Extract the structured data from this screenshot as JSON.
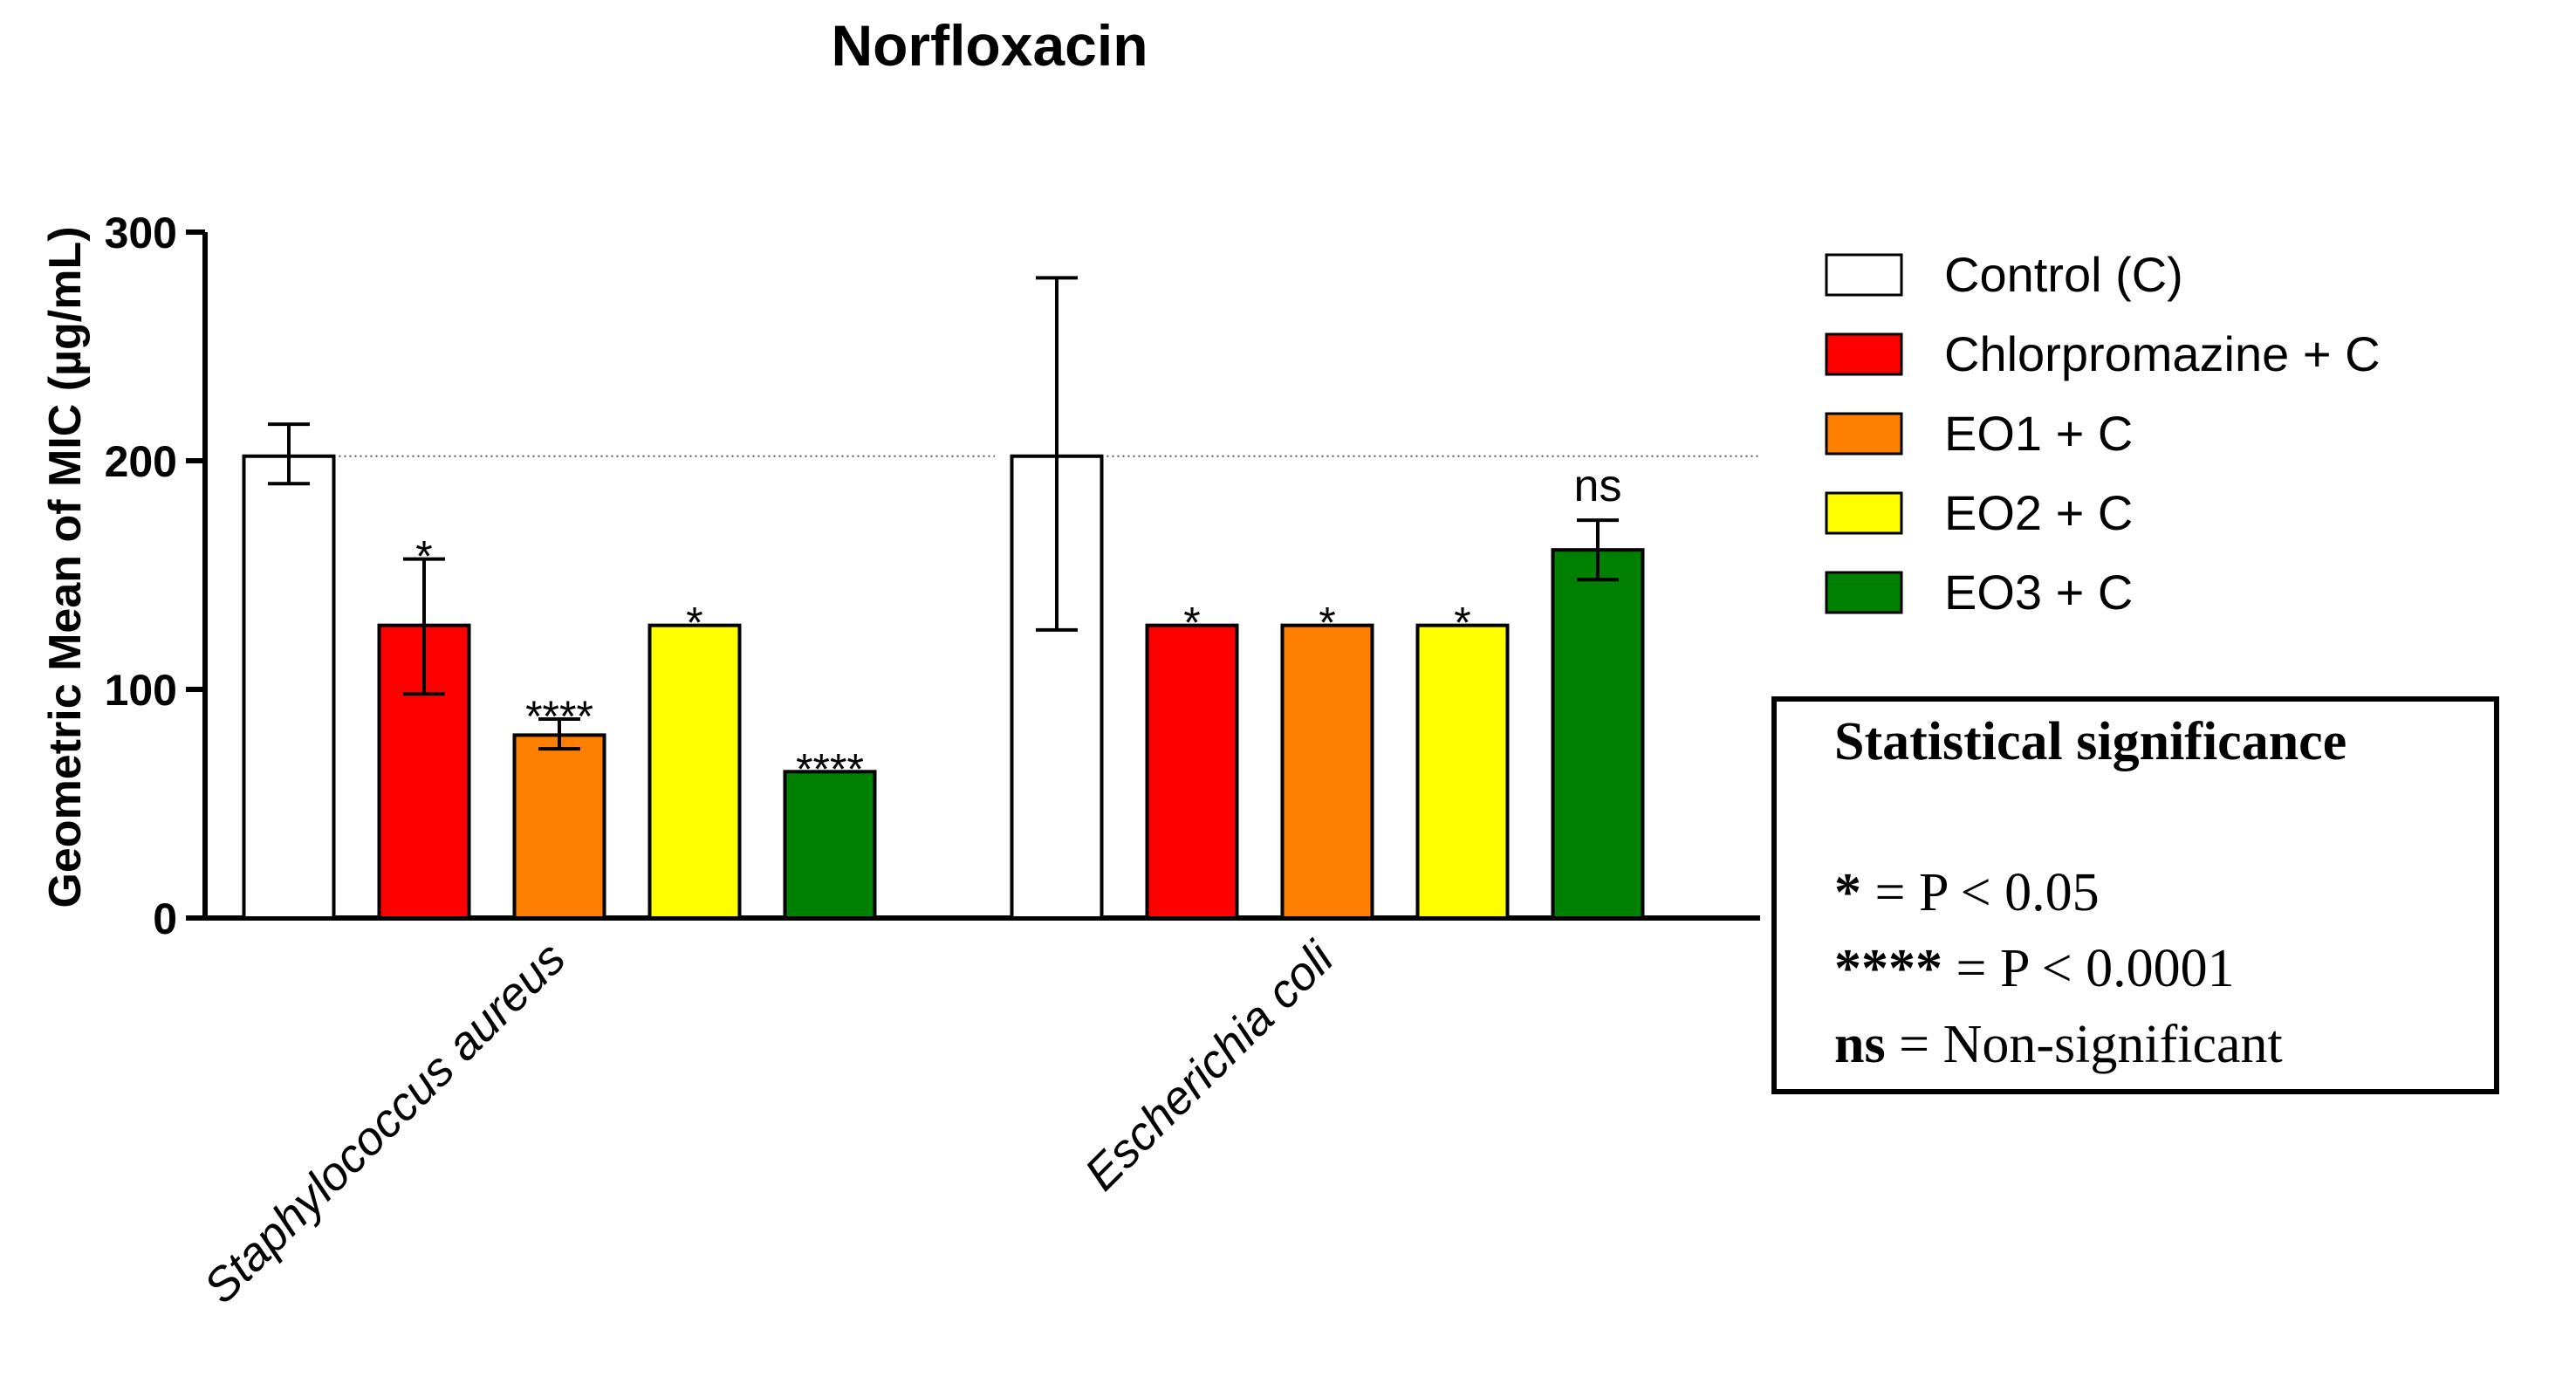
{
  "chart_data": {
    "type": "bar",
    "title": "Norfloxacin",
    "ylabel": "Geometric Mean of MIC (µg/mL)",
    "xlabel": "",
    "ylim": [
      0,
      300
    ],
    "yticks": [
      0,
      100,
      200,
      300
    ],
    "categories": [
      "Staphylococcus aureus",
      "Escherichia coli"
    ],
    "reference_line": 202,
    "series": [
      {
        "name": "Control (C)",
        "color": "#ffffff",
        "values": [
          202,
          202
        ],
        "err_low": [
          190,
          126
        ],
        "err_high": [
          216,
          280
        ],
        "labels": [
          "",
          ""
        ]
      },
      {
        "name": "Chlorpromazine + C",
        "color": "#ff0000",
        "values": [
          128,
          128
        ],
        "err_low": [
          98,
          128
        ],
        "err_high": [
          157,
          128
        ],
        "labels": [
          "*",
          "*"
        ]
      },
      {
        "name": "EO1 + C",
        "color": "#ff8000",
        "values": [
          80,
          128
        ],
        "err_low": [
          74,
          128
        ],
        "err_high": [
          87,
          128
        ],
        "labels": [
          "****",
          "*"
        ]
      },
      {
        "name": "EO2 + C",
        "color": "#ffff00",
        "values": [
          128,
          128
        ],
        "err_low": [
          128,
          128
        ],
        "err_high": [
          128,
          128
        ],
        "labels": [
          "*",
          "*"
        ]
      },
      {
        "name": "EO3 + C",
        "color": "#008000",
        "values": [
          64,
          161
        ],
        "err_low": [
          64,
          148
        ],
        "err_high": [
          64,
          174
        ],
        "labels": [
          "****",
          "ns"
        ]
      }
    ],
    "legend_position": "right"
  },
  "significance_box": {
    "title": "Statistical significance",
    "rows": [
      {
        "symbol": "*",
        "text": " = P < 0.05"
      },
      {
        "symbol": "****",
        "text": " = P < 0.0001"
      },
      {
        "symbol": "ns",
        "text": " = Non-significant"
      }
    ]
  }
}
